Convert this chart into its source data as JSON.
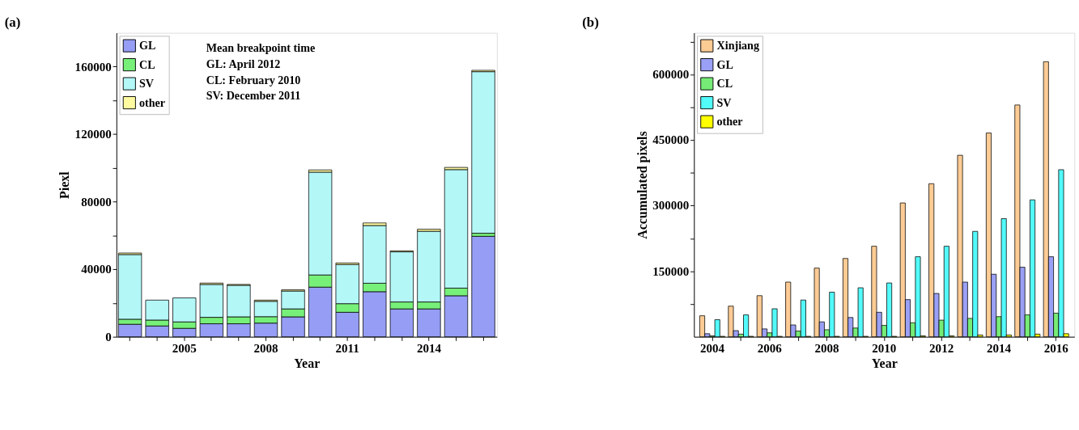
{
  "chart_data": [
    {
      "type": "bar",
      "title": "(a)",
      "xlabel": "Year",
      "ylabel": "Piexl",
      "stacked": true,
      "legend": "top left",
      "categories": [
        null,
        null,
        "2005",
        null,
        null,
        "2008",
        null,
        null,
        "2011",
        null,
        null,
        "2014",
        null,
        null
      ],
      "series": [
        {
          "name": "GL",
          "color": "#959df5",
          "values": [
            7400,
            6400,
            5000,
            7700,
            7700,
            8100,
            11800,
            29400,
            14500,
            26700,
            16500,
            16500,
            24300,
            59500
          ]
        },
        {
          "name": "CL",
          "color": "#77f07a",
          "values": [
            3000,
            3500,
            3800,
            3800,
            4100,
            3800,
            4700,
            7200,
            5100,
            5000,
            4100,
            4100,
            4500,
            1800
          ]
        },
        {
          "name": "SV",
          "color": "#b3f7f7",
          "values": [
            38300,
            11800,
            14200,
            19500,
            18700,
            9100,
            10600,
            60900,
            23200,
            34200,
            29700,
            41900,
            70200,
            95700
          ]
        },
        {
          "name": "other",
          "color": "#fffaa0",
          "values": [
            900,
            null,
            null,
            800,
            500,
            700,
            700,
            1300,
            900,
            1500,
            600,
            1200,
            1300,
            800
          ]
        }
      ],
      "ylim": [
        0,
        180000
      ],
      "yticks": [
        0,
        {
          "value": 20000,
          "label": null
        },
        40000,
        {
          "value": 60000,
          "label": null
        },
        80000,
        {
          "value": 100000,
          "label": null
        },
        120000,
        {
          "value": 140000,
          "label": null
        },
        160000
      ],
      "annotations": [
        "Mean breakpoint time",
        "GL: April 2012",
        "CL: February 2010",
        "SV: December 2011"
      ]
    },
    {
      "type": "bar",
      "title": "(b)",
      "xlabel": "Year",
      "ylabel": "Accumulated pixels",
      "legend": "top left",
      "categories": [
        "2004",
        null,
        "2006",
        null,
        "2008",
        null,
        "2010",
        null,
        "2012",
        null,
        "2014",
        null,
        "2016"
      ],
      "series": [
        {
          "name": "Xinjiang",
          "color": "#fdcb94",
          "values": [
            48000,
            70000,
            94000,
            125000,
            157000,
            179000,
            207000,
            306000,
            350000,
            415000,
            466000,
            530000,
            629000
          ]
        },
        {
          "name": "GL",
          "color": "#9aa0f5",
          "values": [
            7000,
            14000,
            18000,
            27000,
            34000,
            44000,
            56000,
            85000,
            99000,
            125000,
            143000,
            159000,
            183000
          ]
        },
        {
          "name": "CL",
          "color": "#76ec76",
          "values": [
            2000,
            6000,
            9000,
            13000,
            16000,
            20000,
            26000,
            32000,
            38000,
            42000,
            46000,
            50000,
            54000
          ]
        },
        {
          "name": "SV",
          "color": "#52fafa",
          "values": [
            39000,
            50000,
            64000,
            84000,
            102000,
            112000,
            123000,
            183000,
            207000,
            241000,
            270000,
            313000,
            382000
          ]
        },
        {
          "name": "other",
          "color": "#ffff00",
          "values": [
            1000,
            1000,
            1000,
            1000,
            1000,
            1000,
            1000,
            2000,
            2000,
            4000,
            4000,
            6000,
            7000
          ]
        }
      ],
      "ylim": [
        0,
        695000
      ],
      "yticks": [
        {
          "value": 75000,
          "label": null
        },
        150000,
        {
          "value": 225000,
          "label": null
        },
        300000,
        {
          "value": 375000,
          "label": null
        },
        450000,
        {
          "value": 525000,
          "label": null
        },
        600000,
        {
          "value": 675000,
          "label": null
        }
      ]
    }
  ]
}
